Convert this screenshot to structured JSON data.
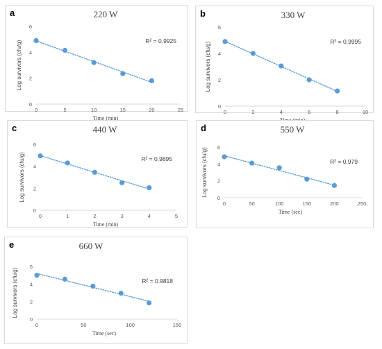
{
  "colors": {
    "marker": "#5b9bd5",
    "trendline": "#5b9bd5",
    "axis": "#d9d9d9"
  },
  "chart_data": [
    {
      "type": "scatter",
      "panel_label": "a",
      "title": "220 W",
      "xlabel": "Time (min)",
      "ylabel": "Log survivors (cfu/g)",
      "xlim": [
        0,
        25
      ],
      "ylim": [
        0,
        6
      ],
      "xticks": [
        "0",
        "5",
        "10",
        "15",
        "20",
        "25"
      ],
      "yticks": [
        "0",
        "2",
        "4",
        "6"
      ],
      "x": [
        0,
        5,
        10,
        15,
        20
      ],
      "y": [
        4.9,
        4.15,
        3.2,
        2.35,
        1.8
      ],
      "trendline": "linear",
      "r2_label": "R² = 0.9925"
    },
    {
      "type": "scatter",
      "panel_label": "b",
      "title": "330 W",
      "xlabel": "Time (min)",
      "ylabel": "Log survivors (cfu/g)",
      "xlim": [
        0,
        10
      ],
      "ylim": [
        0,
        6
      ],
      "xticks": [
        "0",
        "2",
        "4",
        "6",
        "8",
        "10"
      ],
      "yticks": [
        "0",
        "2",
        "4",
        "6"
      ],
      "x": [
        0,
        2,
        4,
        6,
        8
      ],
      "y": [
        4.9,
        4.0,
        3.05,
        2.0,
        1.15
      ],
      "trendline": "linear",
      "r2_label": "R² = 0.9995"
    },
    {
      "type": "scatter",
      "panel_label": "c",
      "title": "440 W",
      "xlabel": "Time (min)",
      "ylabel": "Log survivors (cfu/g)",
      "xlim": [
        0,
        5
      ],
      "ylim": [
        0,
        6
      ],
      "xticks": [
        "0",
        "1",
        "2",
        "3",
        "4",
        "5"
      ],
      "yticks": [
        "0",
        "2",
        "4",
        "6"
      ],
      "x": [
        0,
        1,
        2,
        3,
        4
      ],
      "y": [
        4.95,
        4.3,
        3.45,
        2.5,
        2.05
      ],
      "trendline": "linear",
      "r2_label": "R² = 0.9895"
    },
    {
      "type": "scatter",
      "panel_label": "d",
      "title": "550 W",
      "xlabel": "Time (sec)",
      "ylabel": "Log survivors (cfu/g)",
      "xlim": [
        0,
        250
      ],
      "ylim": [
        0,
        6
      ],
      "xticks": [
        "0",
        "50",
        "100",
        "150",
        "200",
        "250"
      ],
      "yticks": [
        "0",
        "2",
        "4",
        "6"
      ],
      "x": [
        0,
        50,
        100,
        150,
        200
      ],
      "y": [
        4.85,
        4.1,
        3.55,
        2.2,
        1.45
      ],
      "trendline": "linear",
      "r2_label": "R² = 0.979"
    },
    {
      "type": "scatter",
      "panel_label": "e",
      "title": "660 W",
      "xlabel": "Time (sec)",
      "ylabel": "Log survivors (cfu/g)",
      "xlim": [
        0,
        150
      ],
      "ylim": [
        0,
        6
      ],
      "xticks": [
        "0",
        "50",
        "100",
        "150"
      ],
      "yticks": [
        "0",
        "2",
        "4",
        "6"
      ],
      "x": [
        0,
        30,
        60,
        90,
        120
      ],
      "y": [
        5.0,
        4.55,
        3.75,
        2.95,
        1.85
      ],
      "trendline": "linear",
      "r2_label": "R² = 0.9818"
    }
  ]
}
